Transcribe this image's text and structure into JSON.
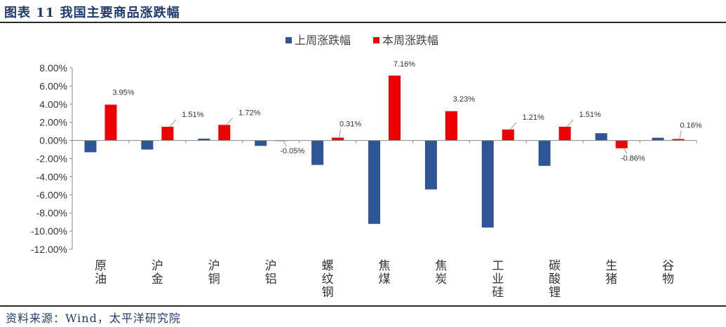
{
  "figure": {
    "title": "图表 11 我国主要商品涨跌幅",
    "source": "资料来源：Wind，太平洋研究院"
  },
  "colors": {
    "series1": "#2e5597",
    "series2": "#ee0000"
  },
  "chart_data": {
    "type": "bar",
    "title": "",
    "xlabel": "",
    "ylabel": "",
    "ylim": [
      -12,
      8
    ],
    "yticks": [
      "8.00%",
      "6.00%",
      "4.00%",
      "2.00%",
      "0.00%",
      "-2.00%",
      "-4.00%",
      "-6.00%",
      "-8.00%",
      "-10.00%",
      "-12.00%"
    ],
    "categories": [
      "原油",
      "沪金",
      "沪铜",
      "沪铝",
      "螺纹钢",
      "焦煤",
      "焦炭",
      "工业硅",
      "碳酸锂",
      "生猪",
      "谷物"
    ],
    "legend_position": "top-center",
    "grid": false,
    "series": [
      {
        "name": "上周涨跌幅",
        "values": [
          -1.3,
          -1.0,
          0.2,
          -0.6,
          -2.7,
          -9.2,
          -5.4,
          -9.6,
          -2.8,
          0.8,
          0.3
        ]
      },
      {
        "name": "本周涨跌幅",
        "values": [
          3.95,
          1.51,
          1.72,
          -0.05,
          0.31,
          7.16,
          3.23,
          1.21,
          1.51,
          -0.86,
          0.16
        ],
        "labels": [
          "3.95%",
          "1.51%",
          "1.72%",
          "-0.05%",
          "0.31%",
          "7.16%",
          "3.23%",
          "1.21%",
          "1.51%",
          "-0.86%",
          "0.16%"
        ]
      }
    ]
  }
}
